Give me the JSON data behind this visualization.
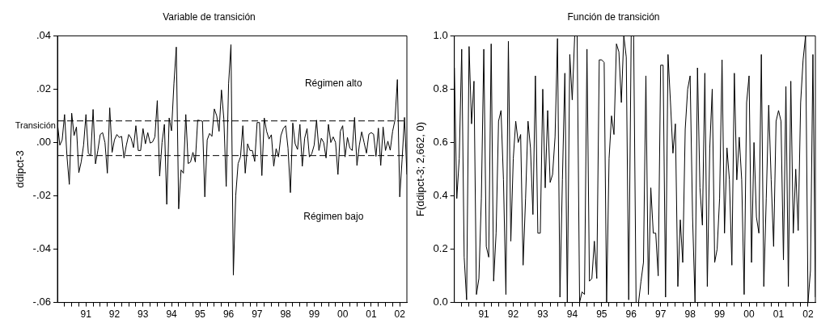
{
  "chart_data": [
    {
      "type": "line",
      "title": "Variable de transición",
      "ylabel": "ddipct-3",
      "color": "#000000",
      "grid": false,
      "x": [
        "1990-07",
        "1990-08",
        "1990-09",
        "1990-10",
        "1990-11",
        "1990-12",
        "1991-01",
        "1991-02",
        "1991-03",
        "1991-04",
        "1991-05",
        "1991-06",
        "1991-07",
        "1991-08",
        "1991-09",
        "1991-10",
        "1991-11",
        "1991-12",
        "1992-01",
        "1992-02",
        "1992-03",
        "1992-04",
        "1992-05",
        "1992-06",
        "1992-07",
        "1992-08",
        "1992-09",
        "1992-10",
        "1992-11",
        "1992-12",
        "1993-01",
        "1993-02",
        "1993-03",
        "1993-04",
        "1993-05",
        "1993-06",
        "1993-07",
        "1993-08",
        "1993-09",
        "1993-10",
        "1993-11",
        "1993-12",
        "1994-01",
        "1994-02",
        "1994-03",
        "1994-04",
        "1994-05",
        "1994-06",
        "1994-07",
        "1994-08",
        "1994-09",
        "1994-10",
        "1994-11",
        "1994-12",
        "1995-01",
        "1995-02",
        "1995-03",
        "1995-04",
        "1995-05",
        "1995-06",
        "1995-07",
        "1995-08",
        "1995-09",
        "1995-10",
        "1995-11",
        "1995-12",
        "1996-01",
        "1996-02",
        "1996-03",
        "1996-04",
        "1996-05",
        "1996-06",
        "1996-07",
        "1996-08",
        "1996-09",
        "1996-10",
        "1996-11",
        "1996-12",
        "1997-01",
        "1997-02",
        "1997-03",
        "1997-04",
        "1997-05",
        "1997-06",
        "1997-07",
        "1997-08",
        "1997-09",
        "1997-10",
        "1997-11",
        "1997-12",
        "1998-01",
        "1998-02",
        "1998-03",
        "1998-04",
        "1998-05",
        "1998-06",
        "1998-07",
        "1998-08",
        "1998-09",
        "1998-10",
        "1998-11",
        "1998-12",
        "1999-01",
        "1999-02",
        "1999-03",
        "1999-04",
        "1999-05",
        "1999-06",
        "1999-07",
        "1999-08",
        "1999-09",
        "1999-10",
        "1999-11",
        "1999-12",
        "2000-01",
        "2000-02",
        "2000-03",
        "2000-04",
        "2000-05",
        "2000-06",
        "2000-07",
        "2000-08",
        "2000-09",
        "2000-10",
        "2000-11",
        "2000-12",
        "2001-01",
        "2001-02",
        "2001-03",
        "2001-04",
        "2001-05",
        "2001-06",
        "2001-07",
        "2001-08",
        "2001-09",
        "2001-10",
        "2001-11",
        "2001-12",
        "2002-01",
        "2002-02",
        "2002-03",
        "2002-04",
        "2002-05",
        "2002-06",
        "2002-07",
        "2002-08",
        "2002-09",
        "2002-10"
      ],
      "values": [
        0.0073,
        -0.001,
        0.001,
        0.0105,
        -0.005,
        -0.0157,
        0.011,
        0.0026,
        0.0058,
        -0.0113,
        -0.0073,
        -0.001,
        0.0105,
        -0.004,
        -0.005,
        0.0124,
        -0.008,
        -0.003,
        0.003,
        0.0037,
        0,
        -0.0115,
        0.013,
        -0.0037,
        0.001,
        0.003,
        0.0019,
        0.0023,
        -0.0058,
        -0.001,
        0.003,
        0.0016,
        -0.0019,
        0.0063,
        -0.003,
        -0.003,
        0.0052,
        -0.0005,
        0.0037,
        -0.0002,
        0.0002,
        0.0021,
        0.0157,
        -0.0126,
        0,
        0.0068,
        -0.0232,
        0.0092,
        0.0044,
        0.022,
        0.0358,
        -0.0249,
        -0.0103,
        -0.0115,
        0.0105,
        -0.0079,
        -0.0073,
        -0.0037,
        -0.0073,
        0.0084,
        0.0082,
        0.008,
        -0.0204,
        0.001,
        0.0034,
        0.0023,
        0.0126,
        0.01,
        0.0042,
        0.0197,
        0.0089,
        -0.0165,
        0.022,
        0.0367,
        -0.0497,
        -0.0199,
        -0.0079,
        -0.0054,
        0.0063,
        -0.0115,
        -0.0005,
        -0.003,
        -0.003,
        -0.0071,
        0.0075,
        0.0075,
        -0.0124,
        0.0092,
        0.0042,
        0.0013,
        0.0029,
        -0.0089,
        -0.0023,
        -0.0054,
        0.0026,
        0.0052,
        0.0063,
        -0.0021,
        -0.0188,
        0.0073,
        -0.0005,
        -0.0026,
        0.0068,
        -0.0089,
        0.0016,
        0.0052,
        -0.0054,
        -0.0042,
        -0.001,
        0.0084,
        -0.003,
        0.0016,
        0,
        -0.0058,
        0.0068,
        0,
        0.0021,
        0,
        -0.012,
        0.0042,
        0.0063,
        -0.0054,
        0.0019,
        -0.0021,
        -0.003,
        0.0094,
        -0.0086,
        -0.001,
        0.004,
        0,
        -0.004,
        0.0031,
        0.0037,
        0.0031,
        -0.0052,
        0.0054,
        -0.0086,
        0.0058,
        -0.003,
        0.0005,
        -0.0029,
        0.0042,
        0.0084,
        0.0236,
        -0.0204,
        -0.0063,
        0.0094,
        -0.012
      ],
      "xlim": [
        "1990-07",
        "2002-10"
      ],
      "xticks": [
        {
          "value": "1990-10",
          "label": null
        },
        {
          "value": "1991-01",
          "label": null
        },
        {
          "value": "1991-04",
          "label": null
        },
        {
          "value": "1991-07",
          "label": "91"
        },
        {
          "value": "1991-10",
          "label": null
        },
        {
          "value": "1992-01",
          "label": null
        },
        {
          "value": "1992-04",
          "label": null
        },
        {
          "value": "1992-07",
          "label": "92"
        },
        {
          "value": "1992-10",
          "label": null
        },
        {
          "value": "1993-01",
          "label": null
        },
        {
          "value": "1993-04",
          "label": null
        },
        {
          "value": "1993-07",
          "label": "93"
        },
        {
          "value": "1993-10",
          "label": null
        },
        {
          "value": "1994-01",
          "label": null
        },
        {
          "value": "1994-04",
          "label": null
        },
        {
          "value": "1994-07",
          "label": "94"
        },
        {
          "value": "1994-10",
          "label": null
        },
        {
          "value": "1995-01",
          "label": null
        },
        {
          "value": "1995-04",
          "label": null
        },
        {
          "value": "1995-07",
          "label": "95"
        },
        {
          "value": "1995-10",
          "label": null
        },
        {
          "value": "1996-01",
          "label": null
        },
        {
          "value": "1996-04",
          "label": null
        },
        {
          "value": "1996-07",
          "label": "96"
        },
        {
          "value": "1996-10",
          "label": null
        },
        {
          "value": "1997-01",
          "label": null
        },
        {
          "value": "1997-04",
          "label": null
        },
        {
          "value": "1997-07",
          "label": "97"
        },
        {
          "value": "1997-10",
          "label": null
        },
        {
          "value": "1998-01",
          "label": null
        },
        {
          "value": "1998-04",
          "label": null
        },
        {
          "value": "1998-07",
          "label": "98"
        },
        {
          "value": "1998-10",
          "label": null
        },
        {
          "value": "1999-01",
          "label": null
        },
        {
          "value": "1999-04",
          "label": null
        },
        {
          "value": "1999-07",
          "label": "99"
        },
        {
          "value": "1999-10",
          "label": null
        },
        {
          "value": "2000-01",
          "label": null
        },
        {
          "value": "2000-04",
          "label": null
        },
        {
          "value": "2000-07",
          "label": "00"
        },
        {
          "value": "2000-10",
          "label": null
        },
        {
          "value": "2001-01",
          "label": null
        },
        {
          "value": "2001-04",
          "label": null
        },
        {
          "value": "2001-07",
          "label": "01"
        },
        {
          "value": "2001-10",
          "label": null
        },
        {
          "value": "2002-01",
          "label": null
        },
        {
          "value": "2002-04",
          "label": null
        },
        {
          "value": "2002-07",
          "label": "02"
        }
      ],
      "ylim": [
        -0.06,
        0.04
      ],
      "yticks": [
        {
          "value": -0.06,
          "label": "-.06"
        },
        {
          "value": -0.04,
          "label": "-.04"
        },
        {
          "value": -0.02,
          "label": "-.02"
        },
        {
          "value": 0,
          "label": ".00"
        },
        {
          "value": 0.02,
          "label": ".02"
        },
        {
          "value": 0.04,
          "label": ".04"
        }
      ],
      "ref_lines": [
        {
          "axis": "y",
          "value": 0.0081,
          "label": "Transición",
          "color": "#000000",
          "line_style": "dashed"
        },
        {
          "axis": "y",
          "value": -0.0049,
          "color": "#000000",
          "line_style": "dashed"
        }
      ],
      "annotations": [
        "Régimen alto",
        "Régimen bajo"
      ]
    },
    {
      "type": "line",
      "title": "Función de transición",
      "ylabel": "F(ddipct-3; 2,662, 0)",
      "color": "#000000",
      "grid": false,
      "x": [
        "1990-07",
        "1990-08",
        "1990-09",
        "1990-10",
        "1990-11",
        "1990-12",
        "1991-01",
        "1991-02",
        "1991-03",
        "1991-04",
        "1991-05",
        "1991-06",
        "1991-07",
        "1991-08",
        "1991-09",
        "1991-10",
        "1991-11",
        "1991-12",
        "1992-01",
        "1992-02",
        "1992-03",
        "1992-04",
        "1992-05",
        "1992-06",
        "1992-07",
        "1992-08",
        "1992-09",
        "1992-10",
        "1992-11",
        "1992-12",
        "1993-01",
        "1993-02",
        "1993-03",
        "1993-04",
        "1993-05",
        "1993-06",
        "1993-07",
        "1993-08",
        "1993-09",
        "1993-10",
        "1993-11",
        "1993-12",
        "1994-01",
        "1994-02",
        "1994-03",
        "1994-04",
        "1994-05",
        "1994-06",
        "1994-07",
        "1994-08",
        "1994-09",
        "1994-10",
        "1994-11",
        "1994-12",
        "1995-01",
        "1995-02",
        "1995-03",
        "1995-04",
        "1995-05",
        "1995-06",
        "1995-07",
        "1995-08",
        "1995-09",
        "1995-10",
        "1995-11",
        "1995-12",
        "1996-01",
        "1996-02",
        "1996-03",
        "1996-04",
        "1996-05",
        "1996-06",
        "1996-07",
        "1996-08",
        "1996-09",
        "1996-10",
        "1996-11",
        "1996-12",
        "1997-01",
        "1997-02",
        "1997-03",
        "1997-04",
        "1997-05",
        "1997-06",
        "1997-07",
        "1997-08",
        "1997-09",
        "1997-10",
        "1997-11",
        "1997-12",
        "1998-01",
        "1998-02",
        "1998-03",
        "1998-04",
        "1998-05",
        "1998-06",
        "1998-07",
        "1998-08",
        "1998-09",
        "1998-10",
        "1998-11",
        "1998-12",
        "1999-01",
        "1999-02",
        "1999-03",
        "1999-04",
        "1999-05",
        "1999-06",
        "1999-07",
        "1999-08",
        "1999-09",
        "1999-10",
        "1999-11",
        "1999-12",
        "2000-01",
        "2000-02",
        "2000-03",
        "2000-04",
        "2000-05",
        "2000-06",
        "2000-07",
        "2000-08",
        "2000-09",
        "2000-10",
        "2000-11",
        "2000-12",
        "2001-01",
        "2001-02",
        "2001-03",
        "2001-04",
        "2001-05",
        "2001-06",
        "2001-07",
        "2001-08",
        "2001-09",
        "2001-10",
        "2001-11",
        "2001-12",
        "2002-01",
        "2002-02",
        "2002-03",
        "2002-04",
        "2002-05",
        "2002-06",
        "2002-07",
        "2002-08",
        "2002-09",
        "2002-10"
      ],
      "values": [
        0.88,
        0.39,
        0.54,
        0.95,
        0.17,
        0.01,
        0.96,
        0.67,
        0.83,
        0.03,
        0.09,
        0.39,
        0.95,
        0.21,
        0.17,
        0.97,
        0.08,
        0.26,
        0.68,
        0.72,
        0.46,
        0.03,
        0.98,
        0.23,
        0.54,
        0.68,
        0.6,
        0.63,
        0.14,
        0.39,
        0.68,
        0.58,
        0.33,
        0.85,
        0.26,
        0.26,
        0.8,
        0.43,
        0.72,
        0.45,
        0.48,
        0.62,
        0.99,
        0.02,
        0.46,
        0.86,
        0,
        0.93,
        0.76,
        1,
        1,
        0,
        0.04,
        0.03,
        0.95,
        0.08,
        0.09,
        0.23,
        0.09,
        0.91,
        0.91,
        0.9,
        0,
        0.54,
        0.7,
        0.63,
        0.97,
        0.94,
        0.75,
        1,
        0.92,
        0.01,
        1,
        1,
        0,
        0,
        0.08,
        0.15,
        0.85,
        0.03,
        0.43,
        0.26,
        0.26,
        0.1,
        0.89,
        0.89,
        0.02,
        0.93,
        0.75,
        0.56,
        0.67,
        0.06,
        0.31,
        0.15,
        0.65,
        0.8,
        0.85,
        0.32,
        0,
        0.88,
        0.43,
        0.29,
        0.86,
        0.06,
        0.58,
        0.8,
        0.15,
        0.2,
        0.39,
        0.91,
        0.26,
        0.58,
        0.46,
        0.14,
        0.86,
        0.46,
        0.62,
        0.46,
        0.03,
        0.75,
        0.85,
        0.15,
        0.6,
        0.32,
        0.26,
        0.93,
        0.06,
        0.39,
        0.74,
        0.46,
        0.21,
        0.68,
        0.72,
        0.68,
        0.16,
        0.81,
        0.06,
        0.83,
        0.26,
        0.5,
        0.27,
        0.75,
        0.91,
        1,
        0,
        0.12,
        0.93,
        0.02
      ],
      "xlim": [
        "1990-07",
        "2002-10"
      ],
      "xticks": [
        {
          "value": "1990-10",
          "label": null
        },
        {
          "value": "1991-01",
          "label": null
        },
        {
          "value": "1991-04",
          "label": null
        },
        {
          "value": "1991-07",
          "label": "91"
        },
        {
          "value": "1991-10",
          "label": null
        },
        {
          "value": "1992-01",
          "label": null
        },
        {
          "value": "1992-04",
          "label": null
        },
        {
          "value": "1992-07",
          "label": "92"
        },
        {
          "value": "1992-10",
          "label": null
        },
        {
          "value": "1993-01",
          "label": null
        },
        {
          "value": "1993-04",
          "label": null
        },
        {
          "value": "1993-07",
          "label": "93"
        },
        {
          "value": "1993-10",
          "label": null
        },
        {
          "value": "1994-01",
          "label": null
        },
        {
          "value": "1994-04",
          "label": null
        },
        {
          "value": "1994-07",
          "label": "94"
        },
        {
          "value": "1994-10",
          "label": null
        },
        {
          "value": "1995-01",
          "label": null
        },
        {
          "value": "1995-04",
          "label": null
        },
        {
          "value": "1995-07",
          "label": "95"
        },
        {
          "value": "1995-10",
          "label": null
        },
        {
          "value": "1996-01",
          "label": null
        },
        {
          "value": "1996-04",
          "label": null
        },
        {
          "value": "1996-07",
          "label": "96"
        },
        {
          "value": "1996-10",
          "label": null
        },
        {
          "value": "1997-01",
          "label": null
        },
        {
          "value": "1997-04",
          "label": null
        },
        {
          "value": "1997-07",
          "label": "97"
        },
        {
          "value": "1997-10",
          "label": null
        },
        {
          "value": "1998-01",
          "label": null
        },
        {
          "value": "1998-04",
          "label": null
        },
        {
          "value": "1998-07",
          "label": "98"
        },
        {
          "value": "1998-10",
          "label": null
        },
        {
          "value": "1999-01",
          "label": null
        },
        {
          "value": "1999-04",
          "label": null
        },
        {
          "value": "1999-07",
          "label": "99"
        },
        {
          "value": "1999-10",
          "label": null
        },
        {
          "value": "2000-01",
          "label": null
        },
        {
          "value": "2000-04",
          "label": null
        },
        {
          "value": "2000-07",
          "label": "00"
        },
        {
          "value": "2000-10",
          "label": null
        },
        {
          "value": "2001-01",
          "label": null
        },
        {
          "value": "2001-04",
          "label": null
        },
        {
          "value": "2001-07",
          "label": "01"
        },
        {
          "value": "2001-10",
          "label": null
        },
        {
          "value": "2002-01",
          "label": null
        },
        {
          "value": "2002-04",
          "label": null
        },
        {
          "value": "2002-07",
          "label": "02"
        }
      ],
      "ylim": [
        0,
        1
      ],
      "yticks": [
        {
          "value": 0,
          "label": "0.0"
        },
        0.2,
        0.4,
        0.6,
        0.8,
        {
          "value": 1,
          "label": "1.0"
        }
      ]
    }
  ]
}
